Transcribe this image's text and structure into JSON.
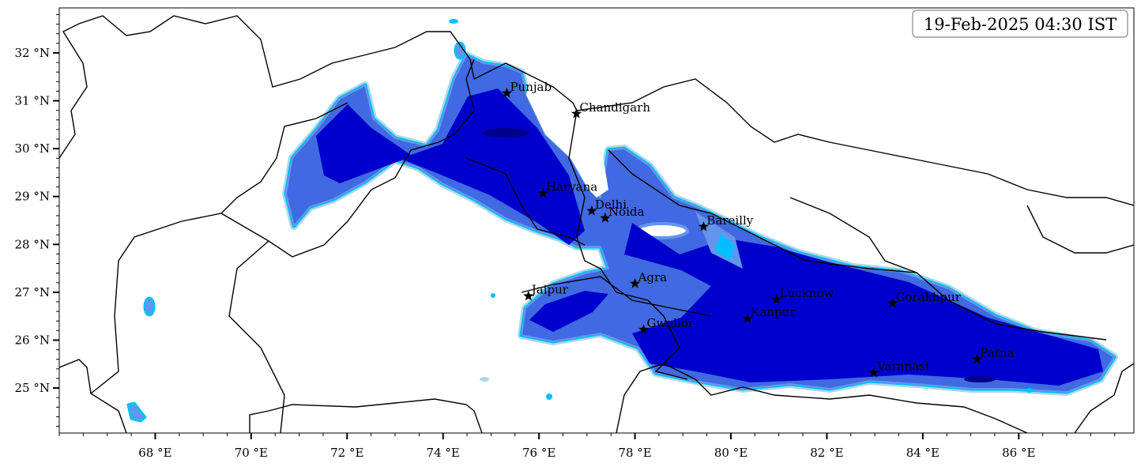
{
  "map": {
    "timestamp": "19-Feb-2025 04:30 IST",
    "extent": {
      "lon": [
        66,
        88.4
      ],
      "lat": [
        24.06,
        32.94
      ]
    },
    "lon_ticks": [
      68,
      70,
      72,
      74,
      76,
      78,
      80,
      82,
      84,
      86
    ],
    "lon_tick_labels": [
      "68 °E",
      "70 °E",
      "72 °E",
      "74 °E",
      "76 °E",
      "78 °E",
      "80 °E",
      "82 °E",
      "84 °E",
      "86 °E"
    ],
    "lat_ticks": [
      25,
      26,
      27,
      28,
      29,
      30,
      31,
      32
    ],
    "lat_tick_labels": [
      "25 °N",
      "26 °N",
      "27 °N",
      "28 °N",
      "29 °N",
      "30 °N",
      "31 °N",
      "32 °N"
    ],
    "colors": {
      "level1": "#add8e6",
      "level2": "#00bfff",
      "level3": "#6495ed",
      "level4": "#4169e1",
      "level5": "#0000cd",
      "level6": "#00008b"
    },
    "marker_icon": "star-icon",
    "cities": [
      {
        "name": "Punjab",
        "lon": 75.33,
        "lat": 31.16
      },
      {
        "name": "Chandigarh",
        "lon": 76.78,
        "lat": 30.73
      },
      {
        "name": "Haryana",
        "lon": 76.08,
        "lat": 29.07
      },
      {
        "name": "Delhi",
        "lon": 77.1,
        "lat": 28.7
      },
      {
        "name": "Noida",
        "lon": 77.38,
        "lat": 28.55
      },
      {
        "name": "Bareilly",
        "lon": 79.43,
        "lat": 28.37
      },
      {
        "name": "Agra",
        "lon": 78.0,
        "lat": 27.18
      },
      {
        "name": "Jaipur",
        "lon": 75.78,
        "lat": 26.92
      },
      {
        "name": "Lucknow",
        "lon": 80.95,
        "lat": 26.85
      },
      {
        "name": "Gorakhpur",
        "lon": 83.37,
        "lat": 26.77
      },
      {
        "name": "Kanpur",
        "lon": 80.35,
        "lat": 26.45
      },
      {
        "name": "Gwalior",
        "lon": 78.18,
        "lat": 26.22
      },
      {
        "name": "Varanasi",
        "lon": 82.98,
        "lat": 25.32
      },
      {
        "name": "Patna",
        "lon": 85.13,
        "lat": 25.6
      }
    ]
  }
}
